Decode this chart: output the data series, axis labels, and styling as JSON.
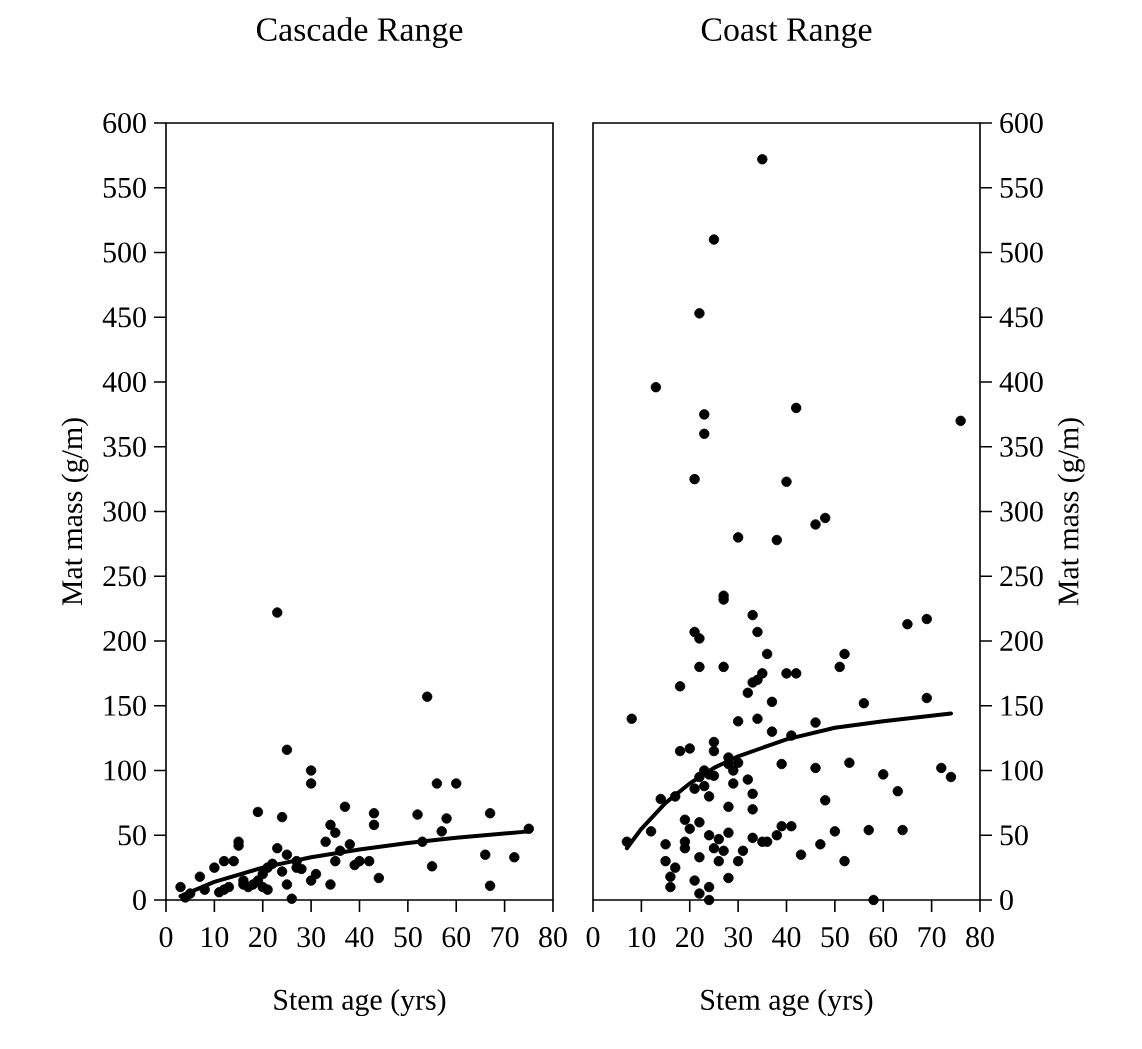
{
  "chart_data": [
    {
      "type": "scatter",
      "title": "Cascade Range",
      "xlabel": "Stem age (yrs)",
      "ylabel": "Mat mass (g/m)",
      "xlim": [
        0,
        80
      ],
      "xticks": [
        0,
        10,
        20,
        30,
        40,
        50,
        60,
        70,
        80
      ],
      "ylim": [
        0,
        600
      ],
      "yticks": [
        0,
        50,
        100,
        150,
        200,
        250,
        300,
        350,
        400,
        450,
        500,
        550,
        600
      ],
      "series": [
        {
          "type": "scatter",
          "color": "#000000",
          "marker": "circle",
          "x": [
            3,
            4,
            5,
            7,
            8,
            10,
            11,
            12,
            12,
            13,
            14,
            15,
            15,
            16,
            16,
            17,
            18,
            19,
            19,
            20,
            20,
            21,
            21,
            22,
            23,
            23,
            24,
            24,
            25,
            25,
            25,
            26,
            27,
            27,
            28,
            30,
            30,
            30,
            31,
            33,
            34,
            34,
            35,
            35,
            36,
            37,
            38,
            39,
            40,
            42,
            43,
            43,
            44,
            52,
            53,
            54,
            55,
            56,
            57,
            58,
            60,
            66,
            67,
            67,
            72,
            75
          ],
          "values": [
            10,
            2,
            5,
            18,
            8,
            25,
            6,
            8,
            30,
            10,
            30,
            45,
            42,
            15,
            12,
            10,
            12,
            68,
            15,
            10,
            20,
            8,
            25,
            28,
            40,
            222,
            22,
            64,
            12,
            116,
            35,
            1,
            30,
            25,
            24,
            100,
            90,
            15,
            20,
            45,
            58,
            12,
            52,
            30,
            38,
            72,
            43,
            27,
            30,
            30,
            67,
            58,
            17,
            66,
            45,
            157,
            26,
            90,
            53,
            63,
            90,
            35,
            67,
            11,
            33,
            55
          ]
        },
        {
          "type": "line",
          "color": "#000000",
          "marker": "none",
          "line_style": "solid",
          "x": [
            3,
            10,
            20,
            30,
            40,
            50,
            60,
            75
          ],
          "values": [
            3,
            14,
            25,
            33,
            39,
            44,
            48,
            53
          ]
        }
      ]
    },
    {
      "type": "scatter",
      "title": "Coast Range",
      "xlabel": "Stem age (yrs)",
      "y2label": "Mat mass (g/m)",
      "xlim": [
        0,
        80
      ],
      "xticks": [
        0,
        10,
        20,
        30,
        40,
        50,
        60,
        70,
        80
      ],
      "y2lim": [
        0,
        600
      ],
      "y2ticks": [
        0,
        50,
        100,
        150,
        200,
        250,
        300,
        350,
        400,
        450,
        500,
        550,
        600
      ],
      "series": [
        {
          "type": "scatter",
          "axis": "y2",
          "color": "#000000",
          "marker": "circle",
          "x": [
            7,
            8,
            12,
            13,
            14,
            15,
            15,
            16,
            16,
            17,
            17,
            18,
            18,
            19,
            19,
            19,
            20,
            20,
            21,
            21,
            21,
            21,
            22,
            22,
            22,
            22,
            22,
            22,
            22,
            23,
            23,
            23,
            23,
            24,
            24,
            24,
            24,
            24,
            25,
            25,
            25,
            25,
            25,
            26,
            26,
            27,
            27,
            27,
            27,
            28,
            28,
            28,
            28,
            28,
            29,
            29,
            30,
            30,
            30,
            30,
            31,
            32,
            32,
            33,
            33,
            33,
            33,
            33,
            34,
            34,
            34,
            35,
            35,
            35,
            36,
            36,
            37,
            37,
            38,
            38,
            39,
            39,
            40,
            40,
            41,
            41,
            42,
            42,
            43,
            46,
            46,
            46,
            47,
            48,
            48,
            50,
            51,
            52,
            52,
            53,
            56,
            57,
            58,
            60,
            63,
            64,
            65,
            69,
            69,
            72,
            74,
            76
          ],
          "values": [
            45,
            140,
            53,
            396,
            78,
            30,
            43,
            10,
            18,
            25,
            80,
            165,
            115,
            62,
            45,
            40,
            55,
            117,
            325,
            207,
            86,
            15,
            95,
            202,
            180,
            60,
            5,
            33,
            453,
            375,
            360,
            88,
            100,
            97,
            10,
            0,
            80,
            50,
            510,
            122,
            115,
            96,
            40,
            30,
            47,
            235,
            232,
            180,
            38,
            110,
            105,
            72,
            52,
            17,
            100,
            90,
            280,
            138,
            106,
            30,
            38,
            160,
            93,
            220,
            168,
            82,
            70,
            48,
            140,
            170,
            207,
            572,
            175,
            45,
            190,
            45,
            153,
            130,
            278,
            50,
            105,
            57,
            323,
            175,
            127,
            57,
            380,
            175,
            35,
            290,
            137,
            102,
            43,
            295,
            77,
            53,
            180,
            190,
            30,
            106,
            152,
            54,
            0,
            97,
            84,
            54,
            213,
            217,
            156,
            102,
            95,
            370
          ]
        },
        {
          "type": "line",
          "axis": "y2",
          "color": "#000000",
          "marker": "none",
          "line_style": "solid",
          "x": [
            7,
            10,
            15,
            20,
            25,
            30,
            40,
            50,
            60,
            74
          ],
          "values": [
            40,
            55,
            75,
            90,
            102,
            111,
            124,
            133,
            138,
            144
          ]
        }
      ]
    }
  ]
}
